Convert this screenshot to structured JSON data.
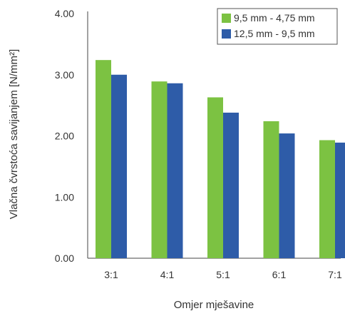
{
  "chart_data": {
    "type": "bar",
    "title": "",
    "xlabel": "Omjer mješavine",
    "ylabel": "Vlačna čvrstoća savijanjem [N/mm²]",
    "categories": [
      "3:1",
      "4:1",
      "5:1",
      "6:1",
      "7:1"
    ],
    "ylim": [
      0,
      4
    ],
    "yticks": [
      "0.00",
      "1.00",
      "2.00",
      "3.00",
      "4.00"
    ],
    "grid": false,
    "legend_position": "top-right",
    "series": [
      {
        "name": "9,5 mm - 4,75 mm",
        "color": "#7cc242",
        "values": [
          3.24,
          2.89,
          2.63,
          2.24,
          1.93
        ]
      },
      {
        "name": "12,5 mm - 9,5 mm",
        "color": "#2e5ca8",
        "values": [
          3.0,
          2.86,
          2.38,
          2.04,
          1.89
        ]
      }
    ]
  }
}
